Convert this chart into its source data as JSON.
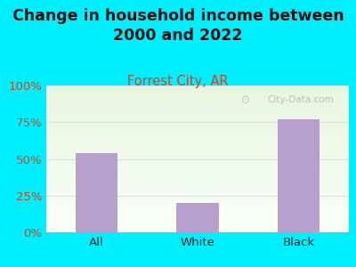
{
  "title": "Change in household income between\n2000 and 2022",
  "subtitle": "Forrest City, AR",
  "categories": [
    "All",
    "White",
    "Black"
  ],
  "values": [
    54,
    20,
    77
  ],
  "bar_color": "#b8a0cc",
  "title_fontsize": 12.5,
  "subtitle_fontsize": 10.5,
  "tick_label_fontsize": 9.5,
  "ytick_color": "#cc4422",
  "xtick_color": "#222222",
  "title_color": "#111111",
  "subtitle_color": "#cc4422",
  "background_color": "#00efff",
  "plot_bg_top": "#e8f5e0",
  "plot_bg_bottom": "#f8fff8",
  "yticks": [
    0,
    25,
    50,
    75,
    100
  ],
  "ytick_labels": [
    "0%",
    "25%",
    "50%",
    "75%",
    "100%"
  ],
  "ylim": [
    0,
    100
  ],
  "watermark": "City-Data.com",
  "watermark_color": "#b0b8b0",
  "grid_color": "#dddddd"
}
